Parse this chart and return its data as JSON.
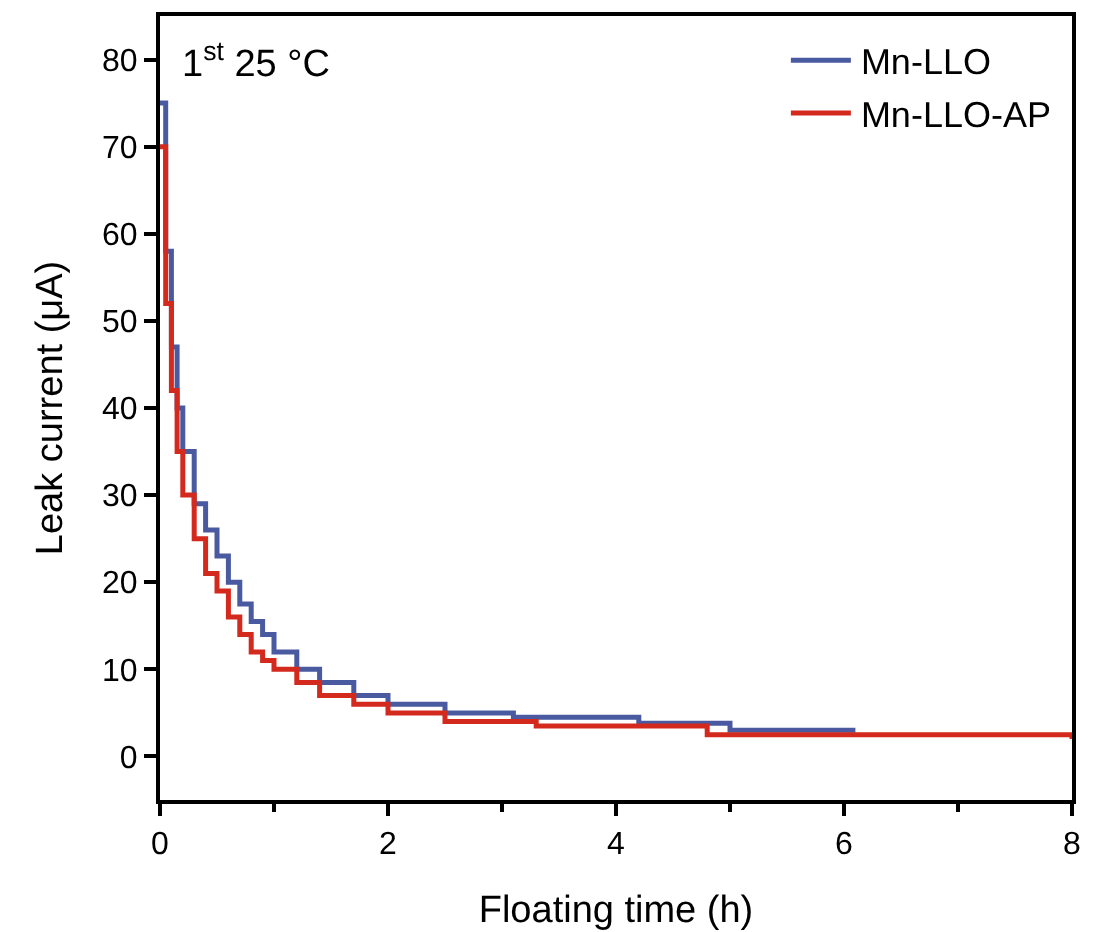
{
  "chart_data": {
    "type": "step",
    "xlabel": "Floating time (h)",
    "ylabel": "Leak current (μA)",
    "annotations": [
      "1$^{st}$ 25 °C"
    ],
    "xlim": [
      0,
      8
    ],
    "xticks": [
      0,
      2,
      4,
      6,
      8
    ],
    "ylim": [
      -5,
      85
    ],
    "yticks": [
      0,
      10,
      20,
      30,
      40,
      50,
      60,
      70,
      80
    ],
    "grid": false,
    "legend": "top right",
    "marker": "none",
    "line_style": "solid",
    "series": [
      {
        "name": "Mn-LLO",
        "color": "#4a5aa0",
        "x": [
          0,
          0.05,
          0.1,
          0.15,
          0.2,
          0.3,
          0.4,
          0.5,
          0.6,
          0.7,
          0.8,
          0.9,
          1.0,
          1.2,
          1.4,
          1.7,
          2.0,
          2.5,
          3.1,
          4.2,
          5.0,
          6.1
        ],
        "values": [
          75,
          58,
          47,
          40,
          35,
          29,
          26,
          23,
          20,
          17.5,
          15.5,
          14,
          12,
          10,
          8.5,
          7,
          6,
          5,
          4.5,
          3.8,
          3,
          3
        ]
      },
      {
        "name": "Mn-LLO-AP",
        "color": "#d42a1e",
        "x": [
          0,
          0.05,
          0.1,
          0.15,
          0.2,
          0.3,
          0.4,
          0.5,
          0.6,
          0.7,
          0.8,
          0.9,
          1.0,
          1.2,
          1.4,
          1.7,
          2.0,
          2.5,
          3.3,
          4.8,
          8.0
        ],
        "values": [
          70,
          52,
          42,
          35,
          30,
          25,
          21,
          19,
          16,
          14,
          12,
          11,
          10,
          8.5,
          7,
          6,
          5,
          4,
          3.5,
          2.5,
          2
        ]
      }
    ]
  }
}
